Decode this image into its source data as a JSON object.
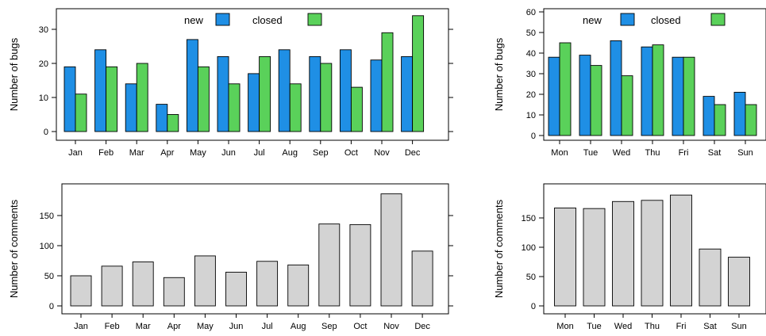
{
  "chart_data": [
    {
      "type": "bar",
      "ylabel": "Number of bugs",
      "categories": [
        "Jan",
        "Feb",
        "Mar",
        "Apr",
        "May",
        "Jun",
        "Jul",
        "Aug",
        "Sep",
        "Oct",
        "Nov",
        "Dec"
      ],
      "series": [
        {
          "name": "new",
          "values": [
            19,
            24,
            14,
            8,
            27,
            22,
            17,
            24,
            22,
            24,
            21,
            22
          ],
          "color": "#1f8fe5"
        },
        {
          "name": "closed",
          "values": [
            11,
            19,
            20,
            5,
            19,
            14,
            22,
            14,
            20,
            13,
            29,
            34
          ],
          "color": "#5ad15a"
        }
      ],
      "ylim": [
        0,
        35
      ],
      "yticks": [
        0,
        10,
        20,
        30
      ],
      "legend": "top-center",
      "grid": false
    },
    {
      "type": "bar",
      "ylabel": "Number of bugs",
      "categories": [
        "Mon",
        "Tue",
        "Wed",
        "Thu",
        "Fri",
        "Sat",
        "Sun"
      ],
      "series": [
        {
          "name": "new",
          "values": [
            38,
            39,
            46,
            43,
            38,
            19,
            21
          ],
          "color": "#1f8fe5"
        },
        {
          "name": "closed",
          "values": [
            45,
            34,
            29,
            44,
            38,
            15,
            15
          ],
          "color": "#5ad15a"
        }
      ],
      "ylim": [
        0,
        62
      ],
      "yticks": [
        0,
        10,
        20,
        30,
        40,
        50,
        60
      ],
      "legend": "top-center",
      "grid": false
    },
    {
      "type": "bar",
      "ylabel": "Number of comments",
      "categories": [
        "Jan",
        "Feb",
        "Mar",
        "Apr",
        "May",
        "Jun",
        "Jul",
        "Aug",
        "Sep",
        "Oct",
        "Nov",
        "Dec"
      ],
      "series": [
        {
          "name": "",
          "values": [
            50,
            66,
            73,
            47,
            83,
            56,
            74,
            68,
            136,
            135,
            186,
            91
          ],
          "color": "#d3d3d3"
        }
      ],
      "ylim": [
        0,
        195
      ],
      "yticks": [
        0,
        50,
        100,
        150
      ],
      "grid": false
    },
    {
      "type": "bar",
      "ylabel": "Number of comments",
      "categories": [
        "Mon",
        "Tue",
        "Wed",
        "Thu",
        "Fri",
        "Sat",
        "Sun"
      ],
      "series": [
        {
          "name": "",
          "values": [
            167,
            166,
            178,
            180,
            189,
            97,
            83
          ],
          "color": "#d3d3d3"
        }
      ],
      "ylim": [
        0,
        198
      ],
      "yticks": [
        0,
        50,
        100,
        150
      ],
      "grid": false
    }
  ]
}
